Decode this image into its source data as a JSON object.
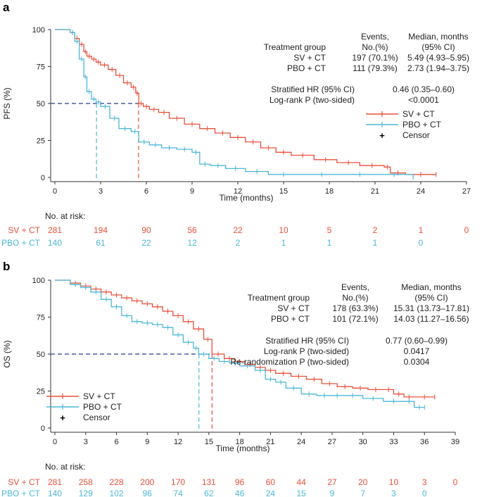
{
  "colors": {
    "sv": "#e8503a",
    "pbo": "#4bb8d8",
    "median_line": "#2b3a8c",
    "axis": "#333333"
  },
  "chart_data": [
    {
      "panel_label": "a",
      "type": "line",
      "subtype": "kaplan-meier",
      "xlabel": "Time (months)",
      "ylabel": "PFS (%)",
      "xlim": [
        0,
        27
      ],
      "ylim": [
        0,
        100
      ],
      "xticks": [
        "0",
        "3",
        "6",
        "9",
        "12",
        "15",
        "18",
        "21",
        "24",
        "27"
      ],
      "yticks": [
        "0",
        "25",
        "50",
        "75",
        "100"
      ],
      "legend": {
        "placement": "right-middle",
        "sv": "SV + CT",
        "pbo": "PBO + CT",
        "censor": "Censor"
      },
      "stats": {
        "hdr_events": "Events,",
        "hdr_events2": "No.(%)",
        "hdr_median": "Median, months",
        "hdr_median2": "(95% CI)",
        "hdr_group": "Treatment group",
        "sv_label": "SV + CT",
        "sv_events": "197 (70.1%)",
        "sv_median": "5.49 (4.93–5.95)",
        "pbo_label": "PBO + CT",
        "pbo_events": "111 (79.3%)",
        "pbo_median": "2.73 (1.94–3.75)",
        "rows": [
          {
            "label": "Stratified HR (95% CI)",
            "value": "0.46 (0.35–0.60)"
          },
          {
            "label": "Log-rank P (two-sided)",
            "value": "<0.0001"
          }
        ]
      },
      "medians": {
        "sv": 5.49,
        "pbo": 2.73
      },
      "series": [
        {
          "name": "SV + CT",
          "key": "sv",
          "x": [
            0,
            1,
            1.3,
            1.6,
            1.9,
            2.1,
            2.4,
            2.7,
            3.0,
            3.5,
            4.0,
            4.5,
            5.0,
            5.3,
            5.5,
            5.8,
            6.2,
            6.8,
            7.5,
            8.5,
            9.5,
            10.5,
            11.5,
            12.5,
            13.5,
            14.5,
            15.5,
            17,
            18.5,
            20,
            21.6,
            22,
            23,
            25
          ],
          "y": [
            100,
            98,
            94,
            90,
            85,
            82,
            80,
            78,
            76,
            73,
            69,
            64,
            61,
            57,
            50,
            48,
            46,
            44,
            40,
            36,
            33,
            30,
            27,
            24,
            20,
            17,
            15,
            12,
            10,
            8,
            7,
            3,
            2,
            2
          ]
        },
        {
          "name": "PBO + CT",
          "key": "pbo",
          "x": [
            0,
            1,
            1.3,
            1.6,
            1.9,
            2.1,
            2.4,
            2.7,
            3.0,
            3.6,
            4.2,
            5.0,
            5.5,
            6.2,
            7.0,
            8.0,
            9.0,
            9.5,
            10.2,
            11.2,
            12.5,
            14,
            16,
            19,
            21,
            23.5
          ],
          "y": [
            100,
            98,
            92,
            80,
            68,
            58,
            53,
            51,
            48,
            40,
            33,
            31,
            24,
            22,
            20,
            19,
            17,
            9,
            8,
            6,
            4,
            2,
            2,
            2,
            2,
            0
          ]
        }
      ],
      "risk_label": "No. at risk:",
      "risk_times": [
        0,
        3,
        6,
        9,
        12,
        15,
        18,
        21,
        24,
        27
      ],
      "risk": {
        "sv_label": "SV + CT",
        "sv": [
          "281",
          "194",
          "90",
          "56",
          "22",
          "10",
          "5",
          "2",
          "1",
          "0"
        ],
        "pbo_label": "PBO + CT",
        "pbo": [
          "140",
          "61",
          "22",
          "12",
          "2",
          "1",
          "1",
          "1",
          "0",
          ""
        ]
      }
    },
    {
      "panel_label": "b",
      "type": "line",
      "subtype": "kaplan-meier",
      "xlabel": "Time (months)",
      "ylabel": "OS (%)",
      "xlim": [
        0,
        39
      ],
      "ylim": [
        0,
        100
      ],
      "xticks": [
        "0",
        "3",
        "6",
        "9",
        "12",
        "15",
        "18",
        "21",
        "24",
        "27",
        "30",
        "33",
        "36",
        "39"
      ],
      "yticks": [
        "0",
        "25",
        "50",
        "75",
        "100"
      ],
      "legend": {
        "placement": "bottom-left",
        "sv": "SV + CT",
        "pbo": "PBO + CT",
        "censor": "Censor"
      },
      "stats": {
        "hdr_events": "Events,",
        "hdr_events2": "No.(%)",
        "hdr_median": "Median, months",
        "hdr_median2": "(95% CI)",
        "hdr_group": "Treatment group",
        "sv_label": "SV + CT",
        "sv_events": "178 (63.3%)",
        "sv_median": "15.31 (13.73–17.81)",
        "pbo_label": "PBO + CT",
        "pbo_events": "101 (72.1%)",
        "pbo_median": "14.03 (11.27–16.56)",
        "rows": [
          {
            "label": "Stratified HR (95% CI)",
            "value": "0.77 (0.60–0.99)"
          },
          {
            "label": "Log-rank P (two-sided)",
            "value": "0.0417"
          },
          {
            "label": "Re-randomization P (two-sided)",
            "value": "0.0304"
          }
        ]
      },
      "medians": {
        "sv": 15.31,
        "pbo": 14.03
      },
      "series": [
        {
          "name": "SV + CT",
          "key": "sv",
          "x": [
            0,
            1.5,
            2.5,
            3.5,
            4.5,
            5.5,
            6.5,
            7.5,
            8.5,
            9.5,
            10.5,
            11.5,
            12.5,
            13.5,
            14.5,
            15.3,
            16.5,
            17.5,
            18.5,
            19.5,
            20.5,
            21.5,
            23,
            24.5,
            26,
            27.5,
            29,
            30.5,
            32,
            33,
            34,
            35,
            37
          ],
          "y": [
            100,
            98,
            96,
            94,
            92,
            90,
            88,
            86,
            84,
            82,
            79,
            76,
            72,
            67,
            60,
            50,
            47,
            45,
            43,
            41,
            39,
            37,
            35,
            33,
            30,
            28,
            27,
            26,
            26,
            23,
            21,
            21,
            21
          ]
        },
        {
          "name": "PBO + CT",
          "key": "pbo",
          "x": [
            0,
            1.5,
            2.5,
            3.5,
            4.5,
            5.5,
            6.5,
            7.5,
            8.5,
            9.5,
            10.5,
            11.5,
            12.5,
            13.5,
            14,
            15,
            16,
            17,
            18,
            19.5,
            20.5,
            21.5,
            22.5,
            24,
            25.5,
            27,
            28,
            30,
            32,
            34,
            35,
            36
          ],
          "y": [
            100,
            97,
            95,
            92,
            87,
            82,
            76,
            72,
            71,
            70,
            68,
            63,
            58,
            54,
            50,
            47,
            45,
            44,
            42,
            39,
            33,
            31,
            27,
            23,
            22,
            22,
            22,
            20,
            18,
            18,
            14,
            14
          ]
        }
      ],
      "risk_label": "No. at risk:",
      "risk_times": [
        0,
        3,
        6,
        9,
        12,
        15,
        18,
        21,
        24,
        27,
        30,
        33,
        36,
        39
      ],
      "risk": {
        "sv_label": "SV + CT",
        "sv": [
          "281",
          "258",
          "228",
          "200",
          "170",
          "131",
          "96",
          "60",
          "44",
          "27",
          "20",
          "10",
          "3",
          "0"
        ],
        "pbo_label": "PBO + CT",
        "pbo": [
          "140",
          "129",
          "102",
          "96",
          "74",
          "62",
          "46",
          "24",
          "15",
          "9",
          "7",
          "3",
          "0",
          ""
        ]
      }
    }
  ]
}
